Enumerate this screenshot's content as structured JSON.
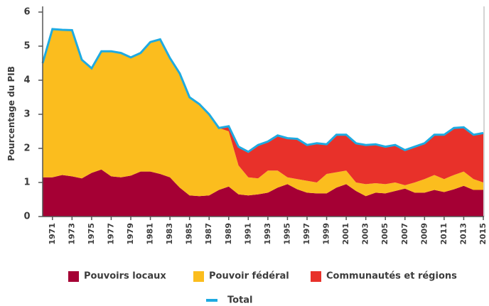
{
  "chart_data": {
    "type": "area",
    "y_label": "Pourcentage du PIB",
    "x": [
      1970,
      1971,
      1972,
      1973,
      1974,
      1975,
      1976,
      1977,
      1978,
      1979,
      1980,
      1981,
      1982,
      1983,
      1984,
      1985,
      1986,
      1987,
      1988,
      1989,
      1990,
      1991,
      1992,
      1993,
      1994,
      1995,
      1996,
      1997,
      1998,
      1999,
      2000,
      2001,
      2002,
      2003,
      2004,
      2005,
      2006,
      2007,
      2008,
      2009,
      2010,
      2011,
      2012,
      2013,
      2014,
      2015
    ],
    "xlim": [
      1970,
      2015
    ],
    "xticks": [
      1971,
      1973,
      1975,
      1977,
      1979,
      1981,
      1983,
      1985,
      1987,
      1989,
      1991,
      1993,
      1995,
      1997,
      1999,
      2001,
      2003,
      2005,
      2007,
      2009,
      2011,
      2013,
      2015
    ],
    "ylim": [
      0,
      6
    ],
    "yticks": [
      0,
      1,
      2,
      3,
      4,
      5,
      6
    ],
    "series": [
      {
        "name": "Pouvoirs locaux",
        "color": "#a50034",
        "values": [
          1.15,
          1.15,
          1.22,
          1.18,
          1.12,
          1.28,
          1.38,
          1.18,
          1.15,
          1.2,
          1.32,
          1.32,
          1.25,
          1.15,
          0.85,
          0.62,
          0.6,
          0.62,
          0.78,
          0.88,
          0.65,
          0.62,
          0.65,
          0.7,
          0.85,
          0.95,
          0.8,
          0.7,
          0.68,
          0.68,
          0.85,
          0.95,
          0.75,
          0.6,
          0.7,
          0.68,
          0.75,
          0.82,
          0.7,
          0.7,
          0.78,
          0.72,
          0.8,
          0.9,
          0.78,
          0.78
        ]
      },
      {
        "name": "Pouvoir fédéral",
        "color": "#fbbd1e",
        "values": [
          3.35,
          4.35,
          4.26,
          4.29,
          3.48,
          3.07,
          3.47,
          3.67,
          3.65,
          3.47,
          3.48,
          3.8,
          3.95,
          3.5,
          3.35,
          2.88,
          2.7,
          2.38,
          1.82,
          1.62,
          0.85,
          0.53,
          0.47,
          0.65,
          0.5,
          0.2,
          0.3,
          0.35,
          0.32,
          0.57,
          0.45,
          0.4,
          0.25,
          0.35,
          0.28,
          0.27,
          0.25,
          0.1,
          0.3,
          0.4,
          0.44,
          0.38,
          0.42,
          0.42,
          0.32,
          0.22
        ]
      },
      {
        "name": "Communautés et régions",
        "color": "#e8312a",
        "values": [
          0,
          0,
          0,
          0,
          0,
          0,
          0,
          0,
          0,
          0,
          0,
          0,
          0,
          0,
          0,
          0,
          0,
          0,
          0,
          0.15,
          0.55,
          0.75,
          0.98,
          0.85,
          1.03,
          1.15,
          1.18,
          1.05,
          1.15,
          0.87,
          1.1,
          1.05,
          1.15,
          1.15,
          1.14,
          1.1,
          1.1,
          1.03,
          1.05,
          1.05,
          1.18,
          1.3,
          1.38,
          1.3,
          1.3,
          1.45
        ]
      },
      {
        "name": "Total",
        "color": "#1eaae1",
        "type": "line",
        "values": [
          4.5,
          5.5,
          5.48,
          5.47,
          4.6,
          4.35,
          4.85,
          4.85,
          4.8,
          4.67,
          4.8,
          5.12,
          5.2,
          4.65,
          4.2,
          3.5,
          3.3,
          3.0,
          2.6,
          2.65,
          2.05,
          1.9,
          2.1,
          2.2,
          2.38,
          2.3,
          2.28,
          2.1,
          2.15,
          2.12,
          2.4,
          2.4,
          2.15,
          2.1,
          2.12,
          2.05,
          2.1,
          1.95,
          2.05,
          2.15,
          2.4,
          2.4,
          2.6,
          2.62,
          2.4,
          2.45
        ]
      }
    ]
  }
}
